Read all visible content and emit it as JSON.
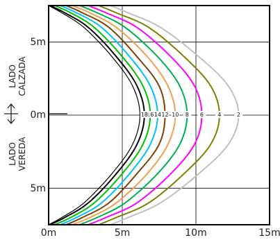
{
  "chart_data": {
    "type": "line",
    "title": "",
    "x_ticks": [
      "0m",
      "5m",
      "10m",
      "15m"
    ],
    "y_ticks": [
      "5m",
      "0m",
      "5m"
    ],
    "xlim": [
      0,
      15
    ],
    "ylim": [
      -7.5,
      7.5
    ],
    "grid": true,
    "side_labels": {
      "top": [
        "LADO",
        "CALZADA"
      ],
      "bottom": [
        "LADO",
        "VEREDA"
      ],
      "arrow": "up-down-arrow"
    },
    "colors": {
      "2": "#c0c0c0",
      "4": "#808000",
      "6": "#ff00ff",
      "8": "#00b050",
      "10": "#f0a050",
      "12": "#7f3f00",
      "14": "#00bfff",
      "16": "#00c000",
      "18": "#000000"
    },
    "series": [
      {
        "level": "2",
        "label": "2",
        "halfwidths": [
          4.2,
          5.4,
          7.6,
          10.2,
          12.2,
          12.9
        ]
      },
      {
        "level": "4",
        "label": "4",
        "halfwidths": [
          3.4,
          4.6,
          6.8,
          9.2,
          11.0,
          11.6
        ]
      },
      {
        "level": "6",
        "label": "6",
        "halfwidths": [
          2.7,
          3.9,
          6.0,
          8.3,
          9.9,
          10.4
        ]
      },
      {
        "level": "8",
        "label": "8",
        "halfwidths": [
          2.1,
          3.3,
          5.2,
          7.4,
          8.9,
          9.4
        ]
      },
      {
        "level": "10",
        "label": "10",
        "halfwidths": [
          1.6,
          2.8,
          4.6,
          6.7,
          8.1,
          8.6
        ]
      },
      {
        "level": "12",
        "label": "12",
        "halfwidths": [
          1.2,
          2.3,
          4.1,
          6.0,
          7.5,
          7.9
        ]
      },
      {
        "level": "14",
        "label": "14",
        "halfwidths": [
          0.8,
          1.9,
          3.6,
          5.5,
          6.9,
          7.4
        ]
      },
      {
        "level": "16",
        "label": "16",
        "halfwidths": [
          0.4,
          1.5,
          3.1,
          5.0,
          6.4,
          6.9
        ]
      },
      {
        "level": "18",
        "label": "18",
        "halfwidths": [
          0.1,
          1.1,
          2.7,
          4.6,
          6.0,
          6.5
        ]
      }
    ]
  }
}
